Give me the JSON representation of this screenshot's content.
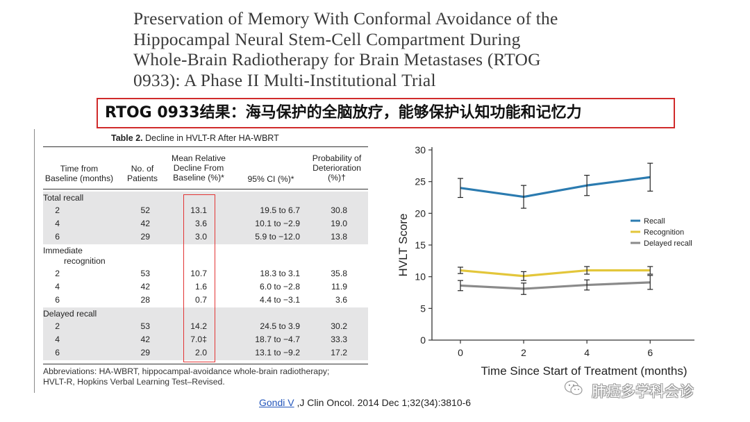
{
  "title_lines": [
    "Preservation of Memory With Conformal Avoidance of the",
    "Hippocampal Neural Stem-Cell Compartment During",
    "Whole-Brain Radiotherapy for Brain Metastases (RTOG",
    "0933): A Phase II Multi-Institutional Trial"
  ],
  "banner": {
    "prefix": "RTOG 0933",
    "text": "结果：海马保护的全脑放疗，能够保护认知功能和记忆力"
  },
  "table": {
    "caption_bold": "Table 2.",
    "caption_rest": " Decline in HVLT-R After HA-WBRT",
    "headers": {
      "time": [
        "Time from",
        "Baseline (months)"
      ],
      "patients": [
        "No. of",
        "Patients"
      ],
      "decline": [
        "Mean Relative",
        "Decline From",
        "Baseline (%)*"
      ],
      "ci": [
        "95% CI (%)*"
      ],
      "prob": [
        "Probability of",
        "Deterioration",
        "(%)†"
      ]
    },
    "groups": [
      {
        "label": [
          "Total recall"
        ],
        "rows": [
          {
            "time": "2",
            "n": "52",
            "decline": "13.1",
            "ci": "19.5 to 6.7",
            "prob": "30.8"
          },
          {
            "time": "4",
            "n": "42",
            "decline": "3.6",
            "ci": "10.1 to −2.9",
            "prob": "19.0"
          },
          {
            "time": "6",
            "n": "29",
            "decline": "3.0",
            "ci": "5.9 to −12.0",
            "prob": "13.8"
          }
        ]
      },
      {
        "label": [
          "Immediate",
          "recognition"
        ],
        "rows": [
          {
            "time": "2",
            "n": "53",
            "decline": "10.7",
            "ci": "18.3 to 3.1",
            "prob": "35.8"
          },
          {
            "time": "4",
            "n": "42",
            "decline": "1.6",
            "ci": "6.0 to −2.8",
            "prob": "11.9"
          },
          {
            "time": "6",
            "n": "28",
            "decline": "0.7",
            "ci": "4.4 to −3.1",
            "prob": "3.6"
          }
        ]
      },
      {
        "label": [
          "Delayed recall"
        ],
        "rows": [
          {
            "time": "2",
            "n": "53",
            "decline": "14.2",
            "ci": "24.5 to 3.9",
            "prob": "30.2"
          },
          {
            "time": "4",
            "n": "42",
            "decline": "7.0‡",
            "ci": "18.7 to −4.7",
            "prob": "33.3"
          },
          {
            "time": "6",
            "n": "29",
            "decline": "2.0",
            "ci": "13.1 to −9.2",
            "prob": "17.2"
          }
        ]
      }
    ],
    "abbreviations": [
      "Abbreviations: HA-WBRT, hippocampal-avoidance whole-brain radiotherapy;",
      "HVLT-R, Hopkins Verbal Learning Test–Revised."
    ]
  },
  "chart_data": {
    "type": "line",
    "xlabel": "Time Since Start of Treatment (months)",
    "ylabel": "HVLT Score",
    "x": [
      0,
      2,
      4,
      6
    ],
    "xticks": [
      "0",
      "2",
      "4",
      "6"
    ],
    "ylim": [
      0,
      30
    ],
    "yticks": [
      "0",
      "5",
      "10",
      "15",
      "20",
      "25",
      "30"
    ],
    "legend_position": "right-middle",
    "series": [
      {
        "name": "Recall",
        "color": "#2b7bb0",
        "values": [
          24.0,
          22.6,
          24.4,
          25.7
        ],
        "err": [
          1.5,
          1.8,
          1.6,
          2.2
        ]
      },
      {
        "name": "Recognition",
        "color": "#e3c63a",
        "values": [
          11.0,
          10.1,
          11.0,
          11.0
        ],
        "err": [
          0.5,
          0.7,
          0.6,
          0.6
        ]
      },
      {
        "name": "Delayed recall",
        "color": "#8a8a8a",
        "values": [
          8.6,
          8.1,
          8.7,
          9.1
        ],
        "err": [
          0.8,
          0.9,
          0.8,
          1.1
        ]
      }
    ]
  },
  "citation": {
    "author": "Gondi V",
    "rest": " ,J Clin Oncol. 2014 Dec 1;32(34):3810-6"
  },
  "watermark": "肺癌多学科会诊"
}
